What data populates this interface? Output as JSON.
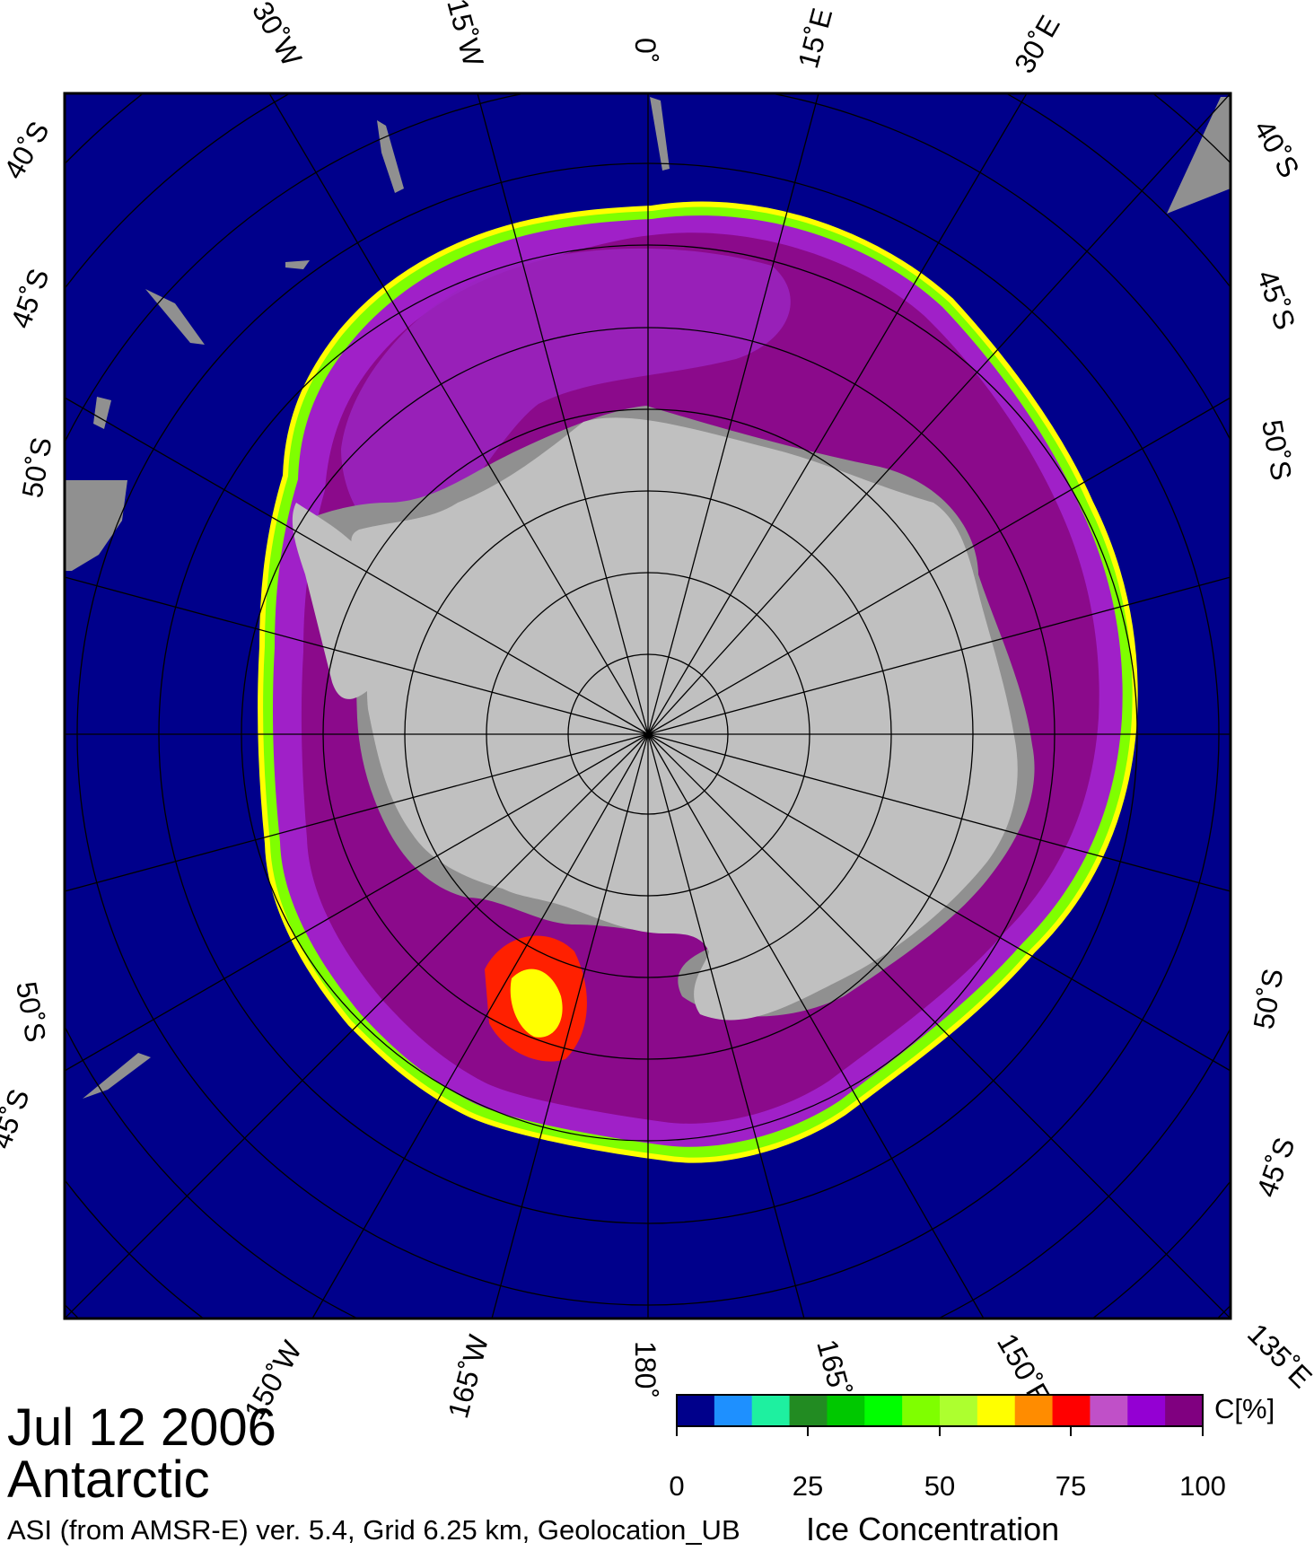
{
  "date": "Jul 12 2006",
  "region": "Antarctic",
  "info": "ASI (from AMSR-E) ver. 5.4,  Grid 6.25 km, Geolocation_UB",
  "product": "Ice Concentration",
  "unit_label": "C[%]",
  "colorbar": {
    "colors": [
      "#00008b",
      "#1e90ff",
      "#1ef0a0",
      "#228b22",
      "#00c800",
      "#00ff00",
      "#7fff00",
      "#adff2f",
      "#ffff00",
      "#ff8c00",
      "#ff0000",
      "#c050c8",
      "#9400d3",
      "#800080"
    ],
    "ticks": [
      "0",
      "25",
      "50",
      "75",
      "100"
    ]
  },
  "top_labels": [
    "30˚W",
    "15˚W",
    "0˚",
    "15˚E",
    "30˚E"
  ],
  "bottom_labels": [
    "150˚W",
    "165˚W",
    "180˚",
    "165˚E",
    "150˚E",
    "135˚E"
  ],
  "left_labels": [
    "40˚S",
    "45˚S",
    "50˚S",
    "50˚S",
    "45˚S"
  ],
  "right_labels": [
    "40˚S",
    "45˚S",
    "50˚S",
    "50˚S",
    "45˚S"
  ],
  "colors": {
    "ocean": "#00008b",
    "ice_high": "#8b0a8b",
    "ice_mid": "#a020c8",
    "land": "#c0c0c0",
    "shelf": "#909090",
    "frame": "#000000"
  }
}
